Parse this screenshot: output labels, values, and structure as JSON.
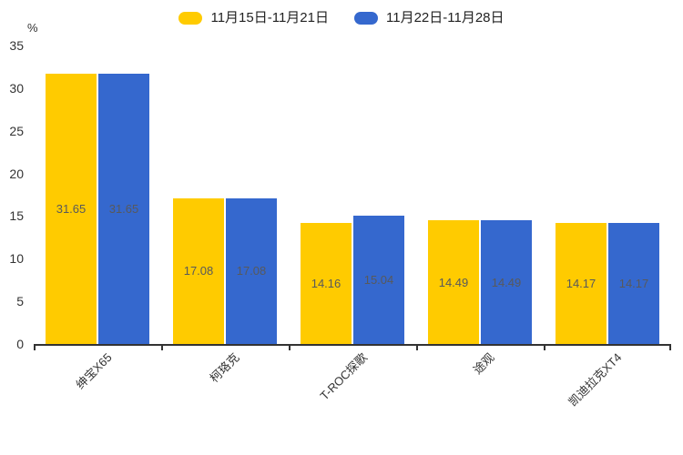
{
  "chart_data": {
    "type": "bar",
    "title": "",
    "xlabel": "",
    "ylabel": "%",
    "ylim": [
      0,
      35
    ],
    "yticks": [
      0,
      5,
      10,
      15,
      20,
      25,
      30,
      35
    ],
    "grid": false,
    "legend_position": "top-center",
    "categories": [
      "绅宝X65",
      "柯珞克",
      "T-ROC探歌",
      "途观",
      "凯迪拉克XT4"
    ],
    "series": [
      {
        "name": "11月15日-11月21日",
        "color": "#FFCB00",
        "values": [
          31.65,
          17.08,
          14.16,
          14.49,
          14.17
        ]
      },
      {
        "name": "11月22日-11月28日",
        "color": "#3568CE",
        "values": [
          31.65,
          17.08,
          15.04,
          14.49,
          14.17
        ]
      }
    ],
    "value_labels": true,
    "value_label_color": "#58595B",
    "axis_color": "#333333"
  }
}
